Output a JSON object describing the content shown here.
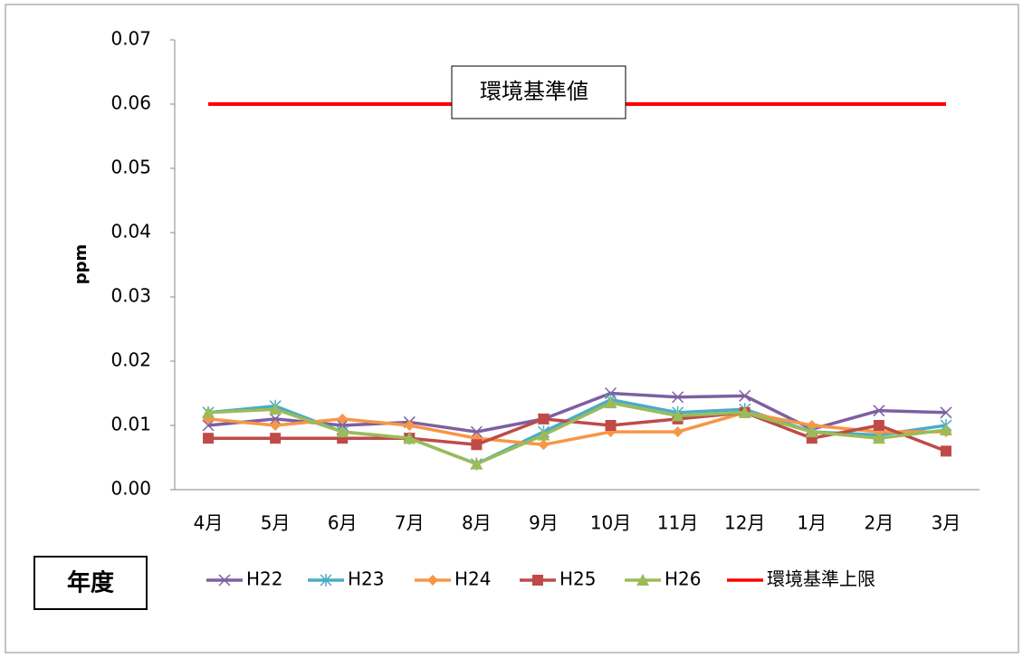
{
  "chart_data": {
    "type": "line",
    "y_label": "ppm",
    "categories": [
      "4月",
      "5月",
      "6月",
      "7月",
      "8月",
      "9月",
      "10月",
      "11月",
      "12月",
      "1月",
      "2月",
      "3月"
    ],
    "series": [
      {
        "name": "H22",
        "color": "#7e5fa2",
        "marker": "x",
        "values": [
          0.01,
          0.011,
          0.01,
          0.0105,
          0.009,
          0.011,
          0.015,
          0.0144,
          0.0146,
          0.0094,
          0.0123,
          0.012
        ]
      },
      {
        "name": "H23",
        "color": "#4bacc6",
        "marker": "star",
        "values": [
          0.012,
          0.013,
          0.009,
          0.008,
          0.004,
          0.009,
          0.014,
          0.012,
          0.0125,
          0.009,
          0.0085,
          0.01
        ]
      },
      {
        "name": "H24",
        "color": "#f79646",
        "marker": "diamond",
        "values": [
          0.011,
          0.01,
          0.011,
          0.01,
          0.008,
          0.007,
          0.009,
          0.009,
          0.012,
          0.01,
          0.009,
          0.009
        ]
      },
      {
        "name": "H25",
        "color": "#be4b48",
        "marker": "square",
        "values": [
          0.008,
          0.008,
          0.008,
          0.008,
          0.007,
          0.011,
          0.01,
          0.011,
          0.012,
          0.008,
          0.01,
          0.006
        ]
      },
      {
        "name": "H26",
        "color": "#9bbb59",
        "marker": "triangle",
        "values": [
          0.012,
          0.0125,
          0.009,
          0.008,
          0.004,
          0.0085,
          0.0135,
          0.0115,
          0.012,
          0.009,
          0.008,
          0.0093
        ]
      },
      {
        "name": "環境基準上限",
        "color": "#ff0000",
        "marker": "none",
        "values": [
          0.06,
          0.06,
          0.06,
          0.06,
          0.06,
          0.06,
          0.06,
          0.06,
          0.06,
          0.06,
          0.06,
          0.06
        ]
      }
    ],
    "ylim": [
      0,
      0.07
    ],
    "yticks": [
      {
        "value": 0,
        "label": "0.00"
      },
      {
        "value": 0.01,
        "label": "0.01"
      },
      {
        "value": 0.02,
        "label": "0.02"
      },
      {
        "value": 0.03,
        "label": "0.03"
      },
      {
        "value": 0.04,
        "label": "0.04"
      },
      {
        "value": 0.05,
        "label": "0.05"
      },
      {
        "value": 0.06,
        "label": "0.06"
      },
      {
        "value": 0.07,
        "label": "0.07"
      }
    ],
    "grid": false,
    "annotations": [
      "環境基準値",
      "年度"
    ]
  }
}
